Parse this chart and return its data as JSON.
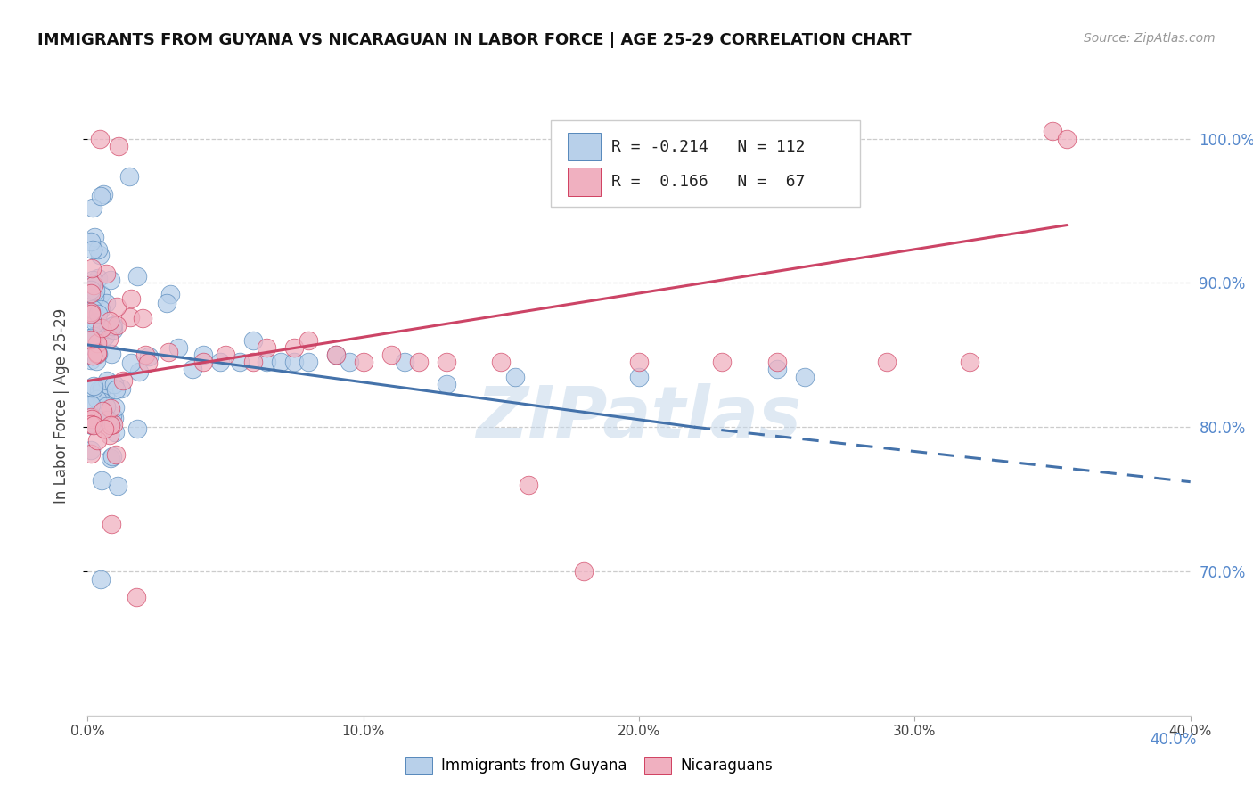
{
  "title": "IMMIGRANTS FROM GUYANA VS NICARAGUAN IN LABOR FORCE | AGE 25-29 CORRELATION CHART",
  "source": "Source: ZipAtlas.com",
  "ylabel": "In Labor Force | Age 25-29",
  "legend_blue_R": "-0.214",
  "legend_blue_N": "112",
  "legend_pink_R": "0.166",
  "legend_pink_N": "67",
  "legend_blue_label": "Immigrants from Guyana",
  "legend_pink_label": "Nicaraguans",
  "xlim": [
    0.0,
    0.4
  ],
  "ylim": [
    0.6,
    1.03
  ],
  "xtick_vals": [
    0.0,
    0.1,
    0.2,
    0.3,
    0.4
  ],
  "xtick_labels": [
    "0.0%",
    "10.0%",
    "20.0%",
    "30.0%",
    "40.0%"
  ],
  "ytick_vals": [
    0.7,
    0.8,
    0.9,
    1.0
  ],
  "ytick_labels_right": [
    "70.0%",
    "80.0%",
    "90.0%",
    "100.0%"
  ],
  "right_label_40": "40.0%",
  "blue_fill": "#b8d0ea",
  "blue_edge": "#5588bb",
  "pink_fill": "#f0b0c0",
  "pink_edge": "#d04060",
  "blue_line": "#4472aa",
  "pink_line": "#cc4466",
  "watermark": "ZIPatlas"
}
